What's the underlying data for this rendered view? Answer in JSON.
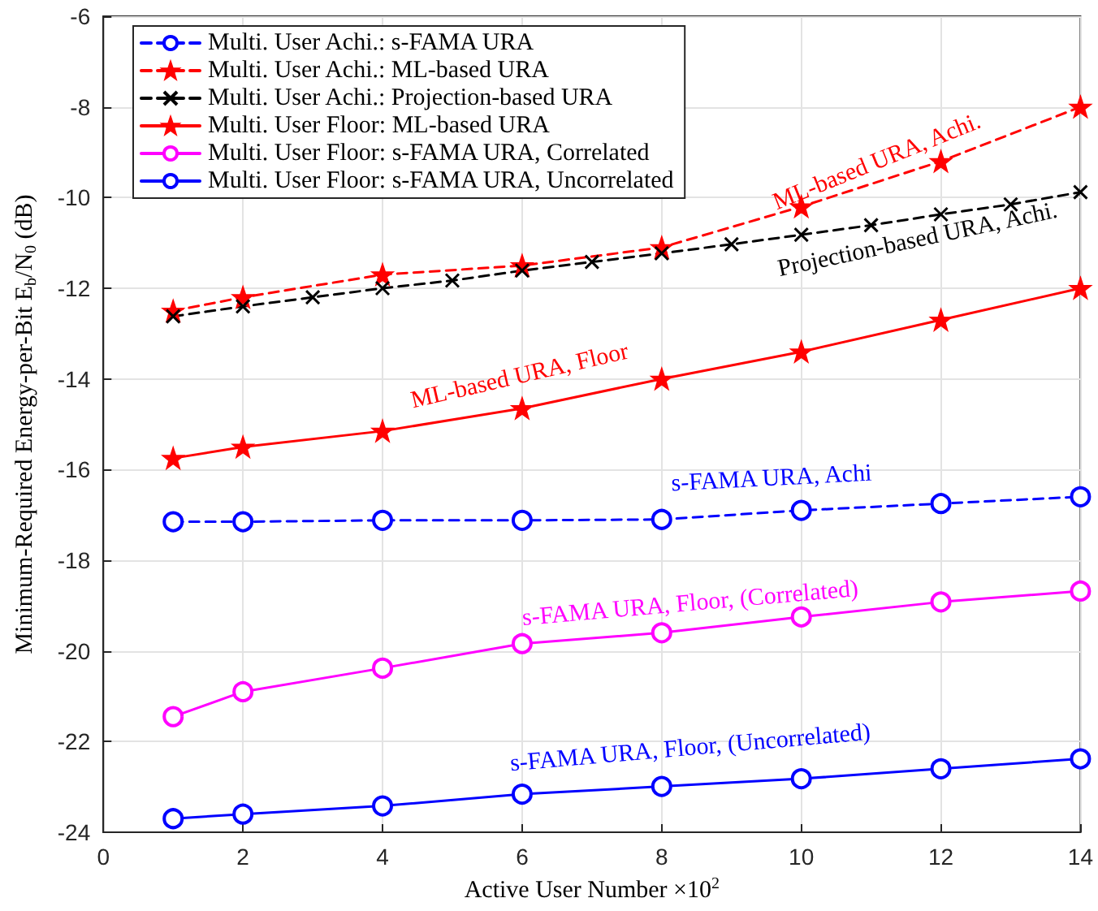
{
  "chart_data": {
    "type": "line",
    "xlabel": "Active User Number ×10$^{2}$",
    "ylabel": "Minimum-Required Energy-per-Bit E$_{b}$/N$_{0}$ (dB)",
    "xlim": [
      0,
      14
    ],
    "xticks": [
      0,
      2,
      4,
      6,
      8,
      10,
      12,
      14
    ],
    "ylim": [
      -24,
      -6
    ],
    "yticks": [
      -24,
      -22,
      -20,
      -18,
      -16,
      -14,
      -12,
      -10,
      -8,
      -6
    ],
    "grid": true,
    "legend": "top left",
    "series": [
      {
        "name": "Multi. User Achi.: s-FAMA URA",
        "color": "#0000ff",
        "marker": "circle",
        "line_style": "dashed",
        "x": [
          1,
          2,
          4,
          6,
          8,
          10,
          12,
          14
        ],
        "values": [
          -17.15,
          -17.15,
          -17.12,
          -17.12,
          -17.1,
          -16.9,
          -16.75,
          -16.6
        ]
      },
      {
        "name": "Multi. User Achi.: ML-based URA",
        "color": "#ff0000",
        "marker": "star",
        "line_style": "dashed",
        "x": [
          1,
          2,
          4,
          6,
          8,
          10,
          12,
          14
        ],
        "values": [
          -12.5,
          -12.2,
          -11.7,
          -11.5,
          -11.1,
          -10.2,
          -9.2,
          -8.0
        ]
      },
      {
        "name": "Multi. User Achi.: Projection-based URA",
        "color": "#000000",
        "marker": "cross",
        "line_style": "dashed",
        "x": [
          1,
          2,
          3,
          4,
          5,
          6,
          7,
          8,
          9,
          10,
          11,
          12,
          13,
          14
        ],
        "values": [
          -12.62,
          -12.4,
          -12.2,
          -12.0,
          -11.83,
          -11.61,
          -11.42,
          -11.23,
          -11.03,
          -10.82,
          -10.61,
          -10.37,
          -10.15,
          -9.88
        ]
      },
      {
        "name": "Multi. User Floor: ML-based URA",
        "color": "#ff0000",
        "marker": "star",
        "line_style": "solid",
        "x": [
          1,
          2,
          4,
          6,
          8,
          10,
          12,
          14
        ],
        "values": [
          -15.75,
          -15.5,
          -15.15,
          -14.65,
          -14.0,
          -13.4,
          -12.7,
          -12.0
        ]
      },
      {
        "name": "Multi. User Floor: s-FAMA URA, Correlated",
        "color": "#ff00ff",
        "marker": "circle",
        "line_style": "solid",
        "x": [
          1,
          2,
          4,
          6,
          8,
          10,
          12,
          14
        ],
        "values": [
          -21.45,
          -20.9,
          -20.38,
          -19.84,
          -19.6,
          -19.25,
          -18.92,
          -18.68
        ]
      },
      {
        "name": "Multi. User Floor: s-FAMA URA, Uncorrelated",
        "color": "#0000ff",
        "marker": "circle",
        "line_style": "solid",
        "x": [
          1,
          2,
          4,
          6,
          8,
          10,
          12,
          14
        ],
        "values": [
          -23.7,
          -23.6,
          -23.42,
          -23.16,
          -22.99,
          -22.82,
          -22.6,
          -22.38
        ]
      }
    ],
    "annotations": [
      "ML-based URA, Achi.",
      "Projection-based URA, Achi.",
      "ML-based URA, Floor",
      "s-FAMA URA, Achi",
      "s-FAMA URA, Floor, (Correlated)",
      "s-FAMA URA, Floor, (Uncorrelated)"
    ]
  }
}
